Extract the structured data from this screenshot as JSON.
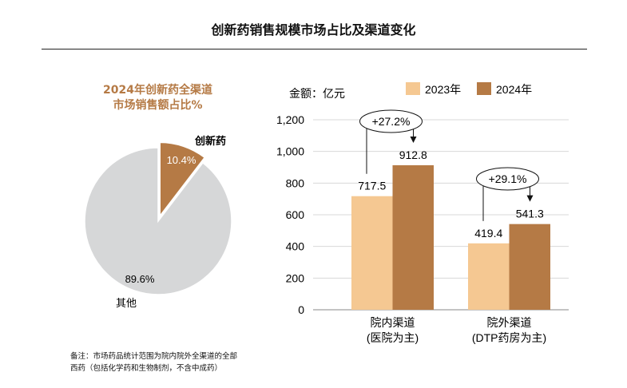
{
  "title": "创新药销售规模市场占比及渠道变化",
  "note": {
    "line1": "备注：市场药品统计范围为院内院外全渠道的全部",
    "line2": "西药（包括化学药和生物制剂，不含中成药）"
  },
  "chart_data": [
    {
      "type": "pie",
      "title_line1": "2024年创新药全渠道",
      "title_line2": "市场销售额占比%",
      "slices": [
        {
          "name": "创新药",
          "value": 10.4,
          "label": "10.4%",
          "color": "#B57A45"
        },
        {
          "name": "其他",
          "value": 89.6,
          "label": "89.6%",
          "color": "#D6D7D8"
        }
      ]
    },
    {
      "type": "bar",
      "ylabel": "金额：亿元",
      "ylim": [
        0,
        1200
      ],
      "yticks": [
        "0",
        "200",
        "400",
        "600",
        "800",
        "1,000",
        "1,200"
      ],
      "grid": true,
      "legend": "top",
      "categories": [
        [
          "院内渠道",
          "(医院为主)"
        ],
        [
          "院外渠道",
          "(DTP药房为主)"
        ]
      ],
      "series": [
        {
          "name": "2023年",
          "values": [
            717.5,
            419.4
          ],
          "labels": [
            "717.5",
            "419.4"
          ],
          "color": "#F5C892"
        },
        {
          "name": "2024年",
          "values": [
            912.8,
            541.3
          ],
          "labels": [
            "912.8",
            "541.3"
          ],
          "color": "#B57A45"
        }
      ],
      "annotations": [
        "+27.2%",
        "+29.1%"
      ]
    }
  ]
}
